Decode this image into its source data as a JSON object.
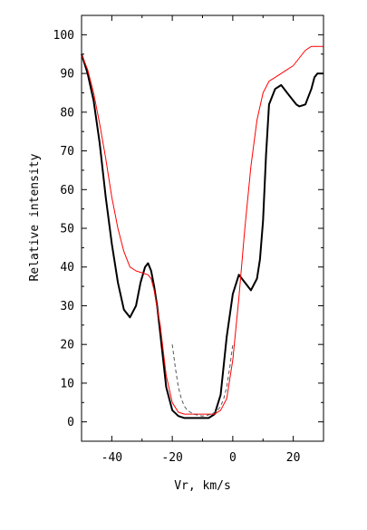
{
  "chart_data": {
    "type": "line",
    "title": "",
    "xlabel": "Vr, km/s",
    "ylabel": "Relative intensity",
    "xlim": [
      -50,
      30
    ],
    "ylim": [
      -5,
      105
    ],
    "x_ticks": [
      -40,
      -20,
      0,
      20
    ],
    "x_tick_labels": [
      "-40",
      "-20",
      "0",
      "20"
    ],
    "y_ticks": [
      0,
      10,
      20,
      30,
      40,
      50,
      60,
      70,
      80,
      90,
      100
    ],
    "y_tick_labels": [
      "0",
      "10",
      "20",
      "30",
      "40",
      "50",
      "60",
      "70",
      "80",
      "90",
      "100"
    ],
    "grid": false,
    "legend": "none",
    "series": [
      {
        "color": "#000000",
        "style": "solid",
        "x": [
          -50,
          -48,
          -46,
          -44,
          -42,
          -40,
          -38,
          -36,
          -34,
          -32,
          -30.5,
          -29,
          -28,
          -27,
          -26,
          -25,
          -24,
          -23,
          -22,
          -20,
          -18,
          -16,
          -14,
          -12,
          -10,
          -8,
          -6,
          -4,
          -2,
          0,
          2,
          4,
          6,
          8,
          9,
          10,
          11,
          12,
          14,
          16,
          18,
          20,
          21,
          22,
          24,
          25,
          26,
          27,
          28,
          30
        ],
        "y": [
          95,
          90,
          83,
          72,
          58,
          46,
          36,
          29,
          27,
          30,
          36,
          40,
          41,
          39,
          35,
          30,
          23,
          16,
          9,
          3,
          1.5,
          1,
          1,
          1,
          1,
          1,
          2,
          7,
          22,
          33,
          38,
          36,
          34,
          37,
          42,
          52,
          69,
          82,
          86,
          87,
          85,
          83,
          82,
          81.5,
          82,
          84,
          86,
          89,
          90,
          90
        ]
      },
      {
        "color": "#ff0000",
        "style": "solid",
        "x": [
          -50,
          -48,
          -46,
          -44,
          -42,
          -40,
          -38,
          -36,
          -34,
          -32,
          -30,
          -28,
          -27,
          -26,
          -24,
          -22,
          -20,
          -18,
          -16,
          -14,
          -12,
          -10,
          -8,
          -6,
          -4,
          -2,
          0,
          2,
          4,
          6,
          8,
          10,
          12,
          14,
          16,
          18,
          20,
          22,
          24,
          26,
          28,
          30
        ],
        "y": [
          95,
          91,
          85,
          77,
          68,
          58,
          50,
          44,
          40,
          39,
          38.5,
          38,
          37,
          34,
          25,
          12,
          5,
          2.5,
          2,
          2,
          2,
          2,
          2,
          2,
          3,
          6,
          16,
          32,
          50,
          66,
          78,
          85,
          88,
          89,
          90,
          91,
          92,
          94,
          96,
          97,
          97,
          97
        ]
      },
      {
        "color": "#555555",
        "style": "dashed",
        "x": [
          -20,
          -19,
          -18,
          -17,
          -16,
          -15,
          -14,
          -13,
          -12,
          -11,
          -10,
          -9,
          -8,
          -7,
          -6,
          -5,
          -4,
          -3,
          -2,
          -1,
          0
        ],
        "y": [
          20,
          14,
          9,
          6,
          4,
          3,
          2.5,
          2,
          1.8,
          1.6,
          1.5,
          1.6,
          1.8,
          2,
          2.5,
          3,
          4,
          6,
          9,
          14,
          20
        ]
      }
    ]
  }
}
